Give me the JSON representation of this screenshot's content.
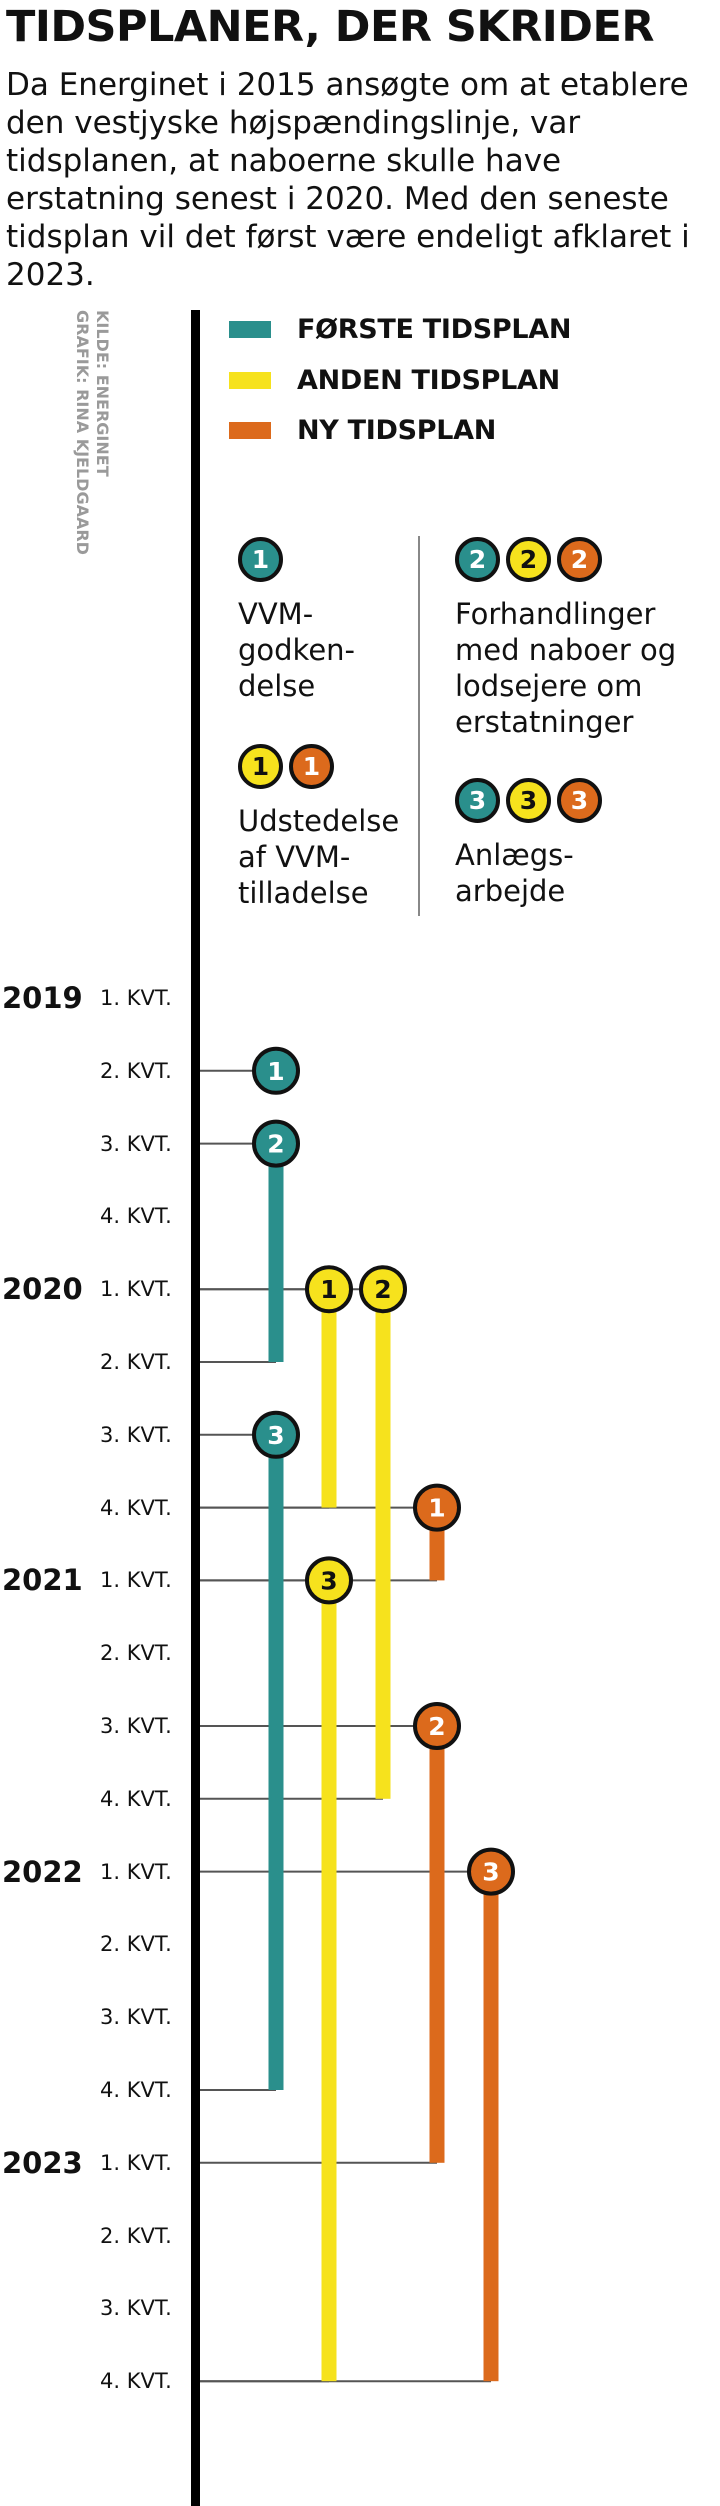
{
  "title": "TIDSPLANER, DER SKRIDER",
  "intro": "Da Energinet i 2015 ansøgte om at etablere den vestjyske højspændingslinje, var tidsplanen, at naboerne skulle have erstatning senest i 2020. Med den seneste tidsplan vil det først være endeligt afklaret i 2023.",
  "credits": {
    "source": "KILDE: ENERGINET",
    "graphics": "GRAFIK: RINA KJELDGAARD"
  },
  "colors": {
    "teal": "#2a8f8c",
    "yellow": "#f6e21d",
    "orange": "#dc6a1c",
    "axis": "#000000",
    "connector": "#555555"
  },
  "legend": [
    {
      "label": "FØRSTE TIDSPLAN",
      "color": "#2a8f8c"
    },
    {
      "label": "ANDEN TIDSPLAN",
      "color": "#f6e21d"
    },
    {
      "label": "NY TIDSPLAN",
      "color": "#dc6a1c"
    }
  ],
  "key": {
    "milestone_1": {
      "badges": [
        "1"
      ],
      "colors": [
        "teal"
      ],
      "text": "VVM-\ngodken-\ndelse"
    },
    "milestone_1b": {
      "badges": [
        "1",
        "1"
      ],
      "colors": [
        "yellow",
        "orange"
      ],
      "text": "Udstedelse\naf  VVM-\ntilladelse"
    },
    "milestone_2": {
      "badges": [
        "2",
        "2",
        "2"
      ],
      "colors": [
        "teal",
        "yellow",
        "orange"
      ],
      "text": "Forhandlinger\nmed naboer og\nlodsejere om\nerstatninger"
    },
    "milestone_3": {
      "badges": [
        "3",
        "3",
        "3"
      ],
      "colors": [
        "teal",
        "yellow",
        "orange"
      ],
      "text": "Anlægs-\narbejde"
    }
  },
  "timeline": {
    "years": [
      "2019",
      "2020",
      "2021",
      "2022",
      "2023"
    ],
    "quarters": [
      "1. KVT.",
      "2. KVT.",
      "3. KVT.",
      "4. KVT."
    ],
    "schedules": [
      {
        "plan": "FØRSTE TIDSPLAN",
        "color": "teal",
        "milestones": [
          {
            "label": "1",
            "quarter": "2019 2. KVT."
          },
          {
            "label": "2",
            "quarter": "2019 3. KVT.",
            "end": "2020 2. KVT."
          },
          {
            "label": "3",
            "quarter": "2020 3. KVT.",
            "end": "2022 4. KVT."
          }
        ]
      },
      {
        "plan": "ANDEN TIDSPLAN",
        "color": "yellow",
        "milestones": [
          {
            "label": "1",
            "quarter": "2020 1. KVT.",
            "end": "2020 4. KVT."
          },
          {
            "label": "2",
            "quarter": "2020 1. KVT.",
            "end": "2021 4. KVT."
          },
          {
            "label": "3",
            "quarter": "2021 1. KVT.",
            "end": "2023 4. KVT."
          }
        ]
      },
      {
        "plan": "NY TIDSPLAN",
        "color": "orange",
        "milestones": [
          {
            "label": "1",
            "quarter": "2020 4. KVT.",
            "end": "2021 1. KVT."
          },
          {
            "label": "2",
            "quarter": "2021 3. KVT.",
            "end": "2023 1. KVT."
          },
          {
            "label": "3",
            "quarter": "2022 1. KVT.",
            "end": "2023 4. KVT."
          }
        ]
      }
    ]
  }
}
